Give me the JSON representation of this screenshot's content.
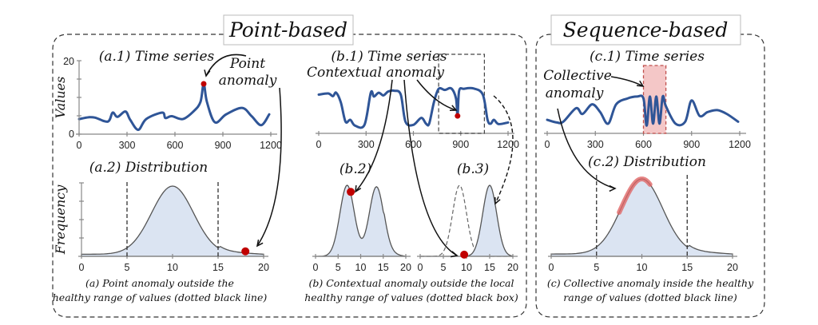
{
  "panels": {
    "point_based": {
      "title": "Point-based",
      "a": {
        "ts_title": "(a.1) Time series",
        "ts_ylabel": "Values",
        "ts_yticks": [
          "0",
          "20"
        ],
        "ts_xticks": [
          "0",
          "300",
          "600",
          "900",
          "1200"
        ],
        "annotation": [
          "Point",
          "anomaly"
        ],
        "dist_title": "(a.2) Distribution",
        "dist_ylabel": "Frequency",
        "dist_xticks": [
          "0",
          "5",
          "10",
          "15",
          "20"
        ],
        "caption": [
          "(a) Point anomaly outside  the",
          "healthy range of values (dotted black line)"
        ]
      },
      "b": {
        "ts_title": "(b.1) Time series",
        "annotation": "Contextual anomaly",
        "ts_xticks": [
          "0",
          "300",
          "600",
          "900",
          "1200"
        ],
        "dist2_title": "(b.2)",
        "dist3_title": "(b.3)",
        "dist_xticks": [
          "0",
          "5",
          "10",
          "15",
          "20"
        ],
        "caption": [
          "(b) Contextual anomaly outside  the local",
          "healthy range of values (dotted black box)"
        ]
      }
    },
    "sequence_based": {
      "title": "Sequence-based",
      "c": {
        "ts_title": "(c.1) Time series",
        "annotation": [
          "Collective",
          "anomaly"
        ],
        "ts_xticks": [
          "0",
          "300",
          "600",
          "900",
          "1200"
        ],
        "dist_title": "(c.2) Distribution",
        "dist_xticks": [
          "0",
          "5",
          "10",
          "15",
          "20"
        ],
        "caption": [
          "(c) Collective anomaly inside the healthy",
          "range of values (dotted black line)"
        ]
      }
    }
  },
  "colors": {
    "series": "#2f5597",
    "anomaly": "#c00000",
    "dist_fill": "#dbe4f2",
    "collective_box": "#f4c7c7"
  },
  "chart_data": [
    {
      "type": "line",
      "title": "(a.1) Time series",
      "ylabel": "Values",
      "xlim": [
        0,
        1200
      ],
      "ylim": [
        0,
        20
      ],
      "x": [
        0,
        60,
        100,
        180,
        210,
        240,
        290,
        320,
        370,
        420,
        520,
        540,
        580,
        650,
        720,
        760,
        780,
        800,
        850,
        920,
        1020,
        1080,
        1140,
        1190
      ],
      "values": [
        4.2,
        4.7,
        4.6,
        3.5,
        6.0,
        4.8,
        6.3,
        4.0,
        1.2,
        4.2,
        6.0,
        4.5,
        5.0,
        4.2,
        6.5,
        9.0,
        14.0,
        9.0,
        3.3,
        5.5,
        7.3,
        5.0,
        2.5,
        5.5
      ],
      "anomaly_point": {
        "x": 780,
        "y": 14.0
      }
    },
    {
      "type": "area",
      "title": "(a.2) Distribution",
      "ylabel": "Frequency",
      "xlim": [
        0,
        20
      ],
      "distribution": "normal",
      "mean": 10,
      "healthy_range": [
        5,
        15
      ],
      "anomaly_point": {
        "x": 18
      }
    },
    {
      "type": "line",
      "title": "(b.1) Time series",
      "xlim": [
        0,
        1200
      ],
      "x": [
        0,
        60,
        90,
        110,
        140,
        170,
        200,
        230,
        290,
        330,
        350,
        380,
        410,
        440,
        480,
        520,
        550,
        600,
        650,
        680,
        700,
        730,
        760,
        800,
        840,
        870,
        880,
        890,
        920,
        980,
        1040,
        1070,
        1090,
        1110,
        1140,
        1200
      ],
      "values": [
        10,
        10.3,
        9.6,
        10.5,
        8,
        3,
        3.5,
        2,
        2.2,
        10.5,
        9.5,
        10.5,
        9.8,
        10.8,
        11,
        10,
        3,
        2.2,
        4,
        2.5,
        2.5,
        8,
        11.5,
        11.2,
        11.6,
        9,
        4.5,
        11,
        11.5,
        11.6,
        10,
        3.5,
        2.5,
        3.5,
        2.4,
        2.8
      ],
      "anomaly_point": {
        "x": 880,
        "y": 4.5
      },
      "context_window": [
        760,
        1050
      ]
    },
    {
      "type": "area",
      "title": "(b.2)",
      "xlim": [
        0,
        20
      ],
      "distribution": "bimodal",
      "modes": [
        7,
        13.5
      ],
      "anomaly_point": {
        "x": 7.8
      }
    },
    {
      "type": "area",
      "title": "(b.3)",
      "xlim": [
        0,
        20
      ],
      "distribution": "local",
      "local_mean": 15,
      "global_mode_dashed": 8.5,
      "anomaly_point": {
        "x": 9.5
      }
    },
    {
      "type": "line",
      "title": "(c.1) Time series",
      "xlim": [
        0,
        1200
      ],
      "x": [
        0,
        60,
        100,
        180,
        220,
        280,
        330,
        380,
        430,
        500,
        560,
        600,
        620,
        640,
        660,
        680,
        700,
        720,
        740,
        800,
        860,
        900,
        950,
        1000,
        1060,
        1120,
        1190
      ],
      "values": [
        3.5,
        2.8,
        3.0,
        6.5,
        5.0,
        7.5,
        5.5,
        2.5,
        7.5,
        9.0,
        9.5,
        9.0,
        2.0,
        9.5,
        2.5,
        9.5,
        2.5,
        9.5,
        7.0,
        2.5,
        3.0,
        8.5,
        4.5,
        5.5,
        6.0,
        5.0,
        3.0
      ],
      "anomaly_window": [
        600,
        740
      ]
    },
    {
      "type": "area",
      "title": "(c.2) Distribution",
      "xlim": [
        0,
        20
      ],
      "distribution": "normal",
      "mean": 10,
      "healthy_range": [
        5,
        15
      ],
      "highlight_range": [
        7.5,
        11
      ]
    }
  ]
}
